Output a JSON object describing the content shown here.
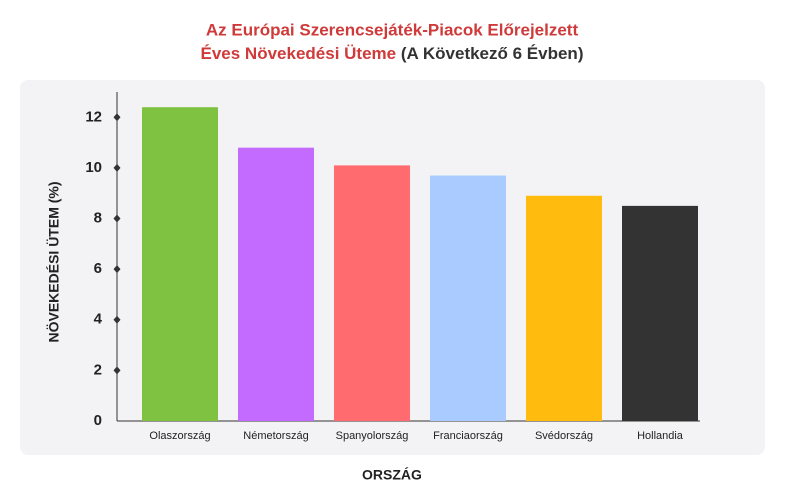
{
  "chart_data": {
    "type": "bar",
    "title": [
      "Az Európai Szerencsejáték-Piacok Előrejelzett",
      "Éves Növekedési Üteme"
    ],
    "subtitle": "(A Következő 6 Évben)",
    "x_label": "ORSZÁG",
    "y_label": "NÖVEKEDÉSI ÜTEM (%)",
    "categories": [
      "Olaszország",
      "Németország",
      "Spanyolország",
      "Franciaország",
      "Svédország",
      "Hollandia"
    ],
    "values": [
      12.4,
      10.8,
      10.1,
      9.7,
      8.9,
      8.5
    ],
    "colors": [
      "#7fc241",
      "#c36bff",
      "#ff6b6e",
      "#a9cbff",
      "#ffbb0e",
      "#333333"
    ],
    "ylim": [
      0,
      13
    ],
    "yticks": [
      0,
      2,
      4,
      6,
      8,
      10,
      12
    ],
    "grid": false
  }
}
